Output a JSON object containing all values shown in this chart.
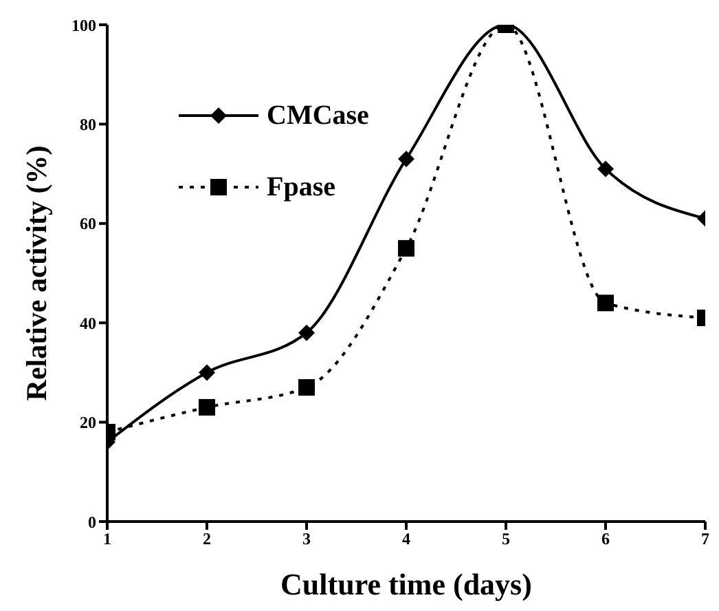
{
  "chart_data": {
    "type": "line",
    "xlabel": "Culture time (days)",
    "ylabel": "Relative activity (%)",
    "x": [
      1,
      2,
      3,
      4,
      5,
      6,
      7
    ],
    "series": [
      {
        "name": "CMCase",
        "color": "#000000",
        "marker": "diamond",
        "line_style": "solid",
        "values": [
          16,
          30,
          38,
          73,
          100,
          71,
          61
        ]
      },
      {
        "name": "Fpase",
        "color": "#000000",
        "marker": "square",
        "line_style": "dotted",
        "values": [
          18,
          23,
          27,
          55,
          100,
          44,
          41
        ]
      }
    ],
    "xlim": [
      1,
      7
    ],
    "xticks": [
      1,
      2,
      3,
      4,
      5,
      6,
      7
    ],
    "ylim": [
      0,
      100
    ],
    "yticks": [
      0,
      20,
      40,
      60,
      80,
      100
    ],
    "grid": false,
    "legend": "top left"
  }
}
